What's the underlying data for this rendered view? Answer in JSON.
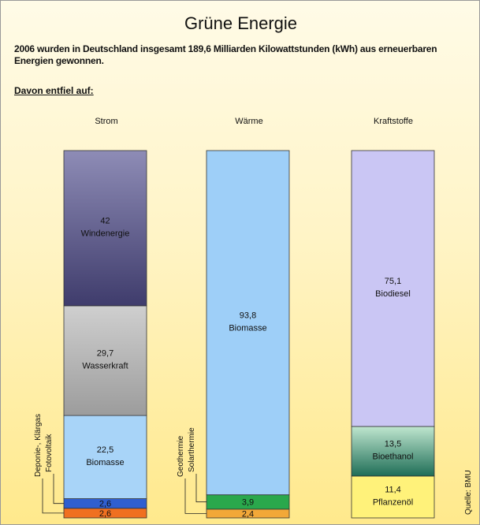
{
  "title": "Grüne Energie",
  "subtitle": "2006 wurden in Deutschland insgesamt 189,6 Milliarden Kilowattstunden (kWh) aus erneuerbaren Energien gewonnen.",
  "davon": "Davon entfiel auf:",
  "source": "Quelle: BMU",
  "chart_data": {
    "type": "bar",
    "stacked": "100%",
    "unit": "%",
    "categories": [
      "Strom",
      "Wärme",
      "Kraftstoffe"
    ],
    "stacks": [
      {
        "category": "Strom",
        "segments": [
          {
            "value": 2.6,
            "value_label": "2,6",
            "name": "Deponie-, Klärgas",
            "color": "#f07020"
          },
          {
            "value": 2.6,
            "value_label": "2,6",
            "name": "Fotovoltaik",
            "color": "#2f5fd0"
          },
          {
            "value": 22.5,
            "value_label": "22,5",
            "name": "Biomasse",
            "color": "#a8d4f8"
          },
          {
            "value": 29.7,
            "value_label": "29,7",
            "name": "Wasserkraft",
            "color": "#b8b8b8"
          },
          {
            "value": 42,
            "value_label": "42",
            "name": "Windenergie",
            "color": "#5e5a88"
          }
        ]
      },
      {
        "category": "Wärme",
        "segments": [
          {
            "value": 2.4,
            "value_label": "2,4",
            "name": "Geothermie",
            "color": "#f2a838"
          },
          {
            "value": 3.9,
            "value_label": "3,9",
            "name": "Solarthermie",
            "color": "#2aa84c"
          },
          {
            "value": 93.8,
            "value_label": "93,8",
            "name": "Biomasse",
            "color": "#9ecff8"
          }
        ]
      },
      {
        "category": "Kraftstoffe",
        "segments": [
          {
            "value": 11.4,
            "value_label": "11,4",
            "name": "Pflanzenöl",
            "color": "#fff27a"
          },
          {
            "value": 13.5,
            "value_label": "13,5",
            "name": "Bioethanol",
            "color": "#2e7f66"
          },
          {
            "value": 75.1,
            "value_label": "75,1",
            "name": "Biodiesel",
            "color": "#cac6f4"
          }
        ]
      }
    ]
  }
}
